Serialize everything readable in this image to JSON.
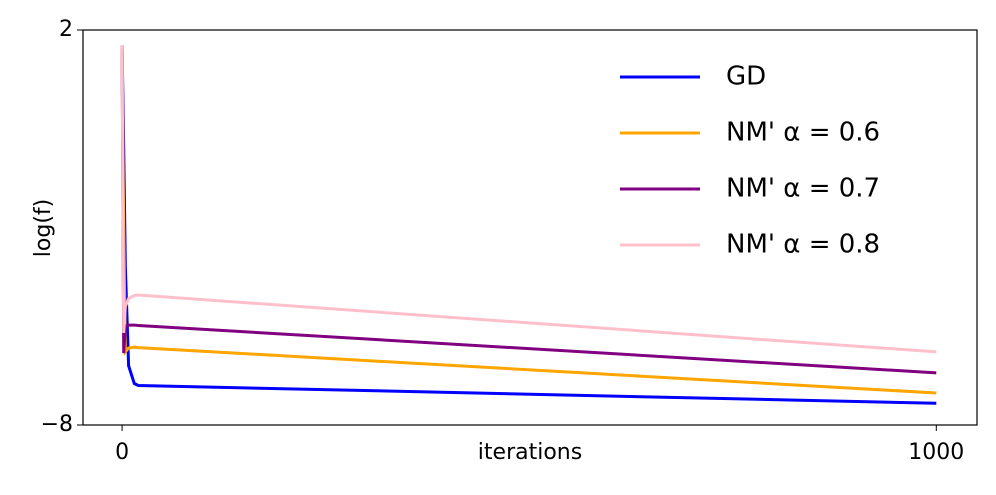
{
  "chart_data": {
    "type": "line",
    "x_label": "iterations",
    "y_label": "log(f)",
    "x": [
      0,
      2,
      4,
      8,
      15,
      20,
      1000
    ],
    "series": [
      {
        "name": "GD",
        "color": "#0000ff",
        "values": [
          1.6,
          -1,
          -4,
          -6.5,
          -6.95,
          -7.0,
          -7.45
        ]
      },
      {
        "name": "NM' α = 0.6",
        "color": "#ffa500",
        "values": [
          1.6,
          -3,
          -6.15,
          -6.05,
          -6.03,
          -6.04,
          -7.19
        ]
      },
      {
        "name": "NM' α = 0.7",
        "color": "#800080",
        "values": [
          1.6,
          -6.18,
          -5.5,
          -5.47,
          -5.47,
          -5.48,
          -6.68
        ]
      },
      {
        "name": "NM' α = 0.8",
        "color": "#ffc0cb",
        "values": [
          1.6,
          -5.67,
          -5.0,
          -4.8,
          -4.72,
          -4.71,
          -6.15
        ]
      }
    ],
    "xlim": [
      -48,
      1050
    ],
    "ylim": [
      -8,
      2
    ],
    "xticks": [
      0,
      1000
    ],
    "yticks": [
      {
        "value": -8,
        "label": "−8"
      },
      2
    ],
    "legend": "upper right"
  }
}
